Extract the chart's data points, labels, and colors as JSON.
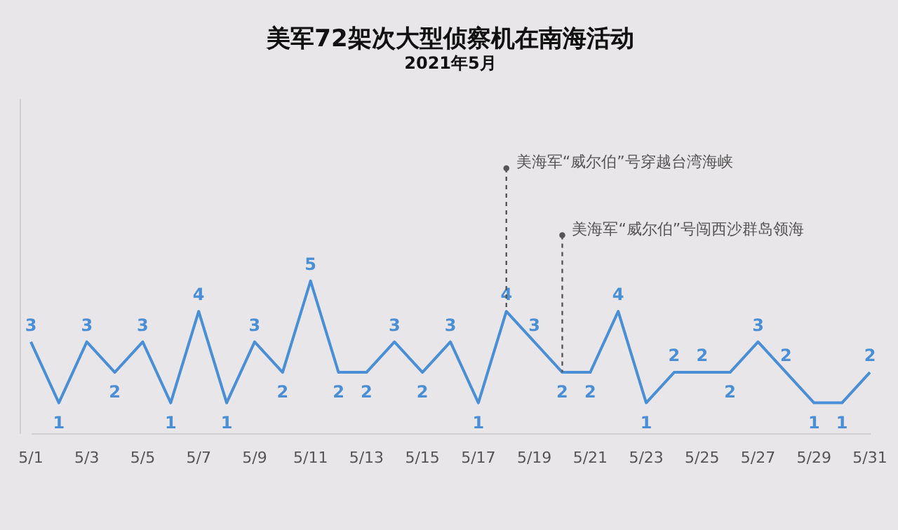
{
  "chart_data": {
    "type": "line",
    "title": "美军72架次大型侦察机在南海活动",
    "subtitle": "2021年5月",
    "x": [
      "--05-01",
      "--05-02",
      "--05-03",
      "--05-04",
      "--05-05",
      "--05-06",
      "--05-07",
      "--05-08",
      "--05-09",
      "--05-10",
      "--05-11",
      "--05-12",
      "--05-13",
      "--05-14",
      "--05-15",
      "--05-16",
      "--05-17",
      "--05-18",
      "--05-19",
      "--05-20",
      "--05-21",
      "--05-22",
      "--05-23",
      "--05-24",
      "--05-25",
      "--05-26",
      "--05-27",
      "--05-28",
      "--05-29",
      "--05-30",
      "--05-31"
    ],
    "series": [
      {
        "color": "#4a8fd6",
        "values": [
          3,
          1,
          3,
          2,
          3,
          1,
          4,
          1,
          3,
          2,
          5,
          2,
          2,
          3,
          2,
          3,
          1,
          4,
          3,
          2,
          2,
          4,
          1,
          2,
          2,
          2,
          3,
          2,
          1,
          1,
          2
        ]
      }
    ],
    "xlim": [
      "--05-01",
      "--05-31"
    ],
    "xticks": [
      {
        "value": "--05-01",
        "label": "5/1"
      },
      {
        "value": "--05-03",
        "label": "5/3"
      },
      {
        "value": "--05-05",
        "label": "5/5"
      },
      {
        "value": "--05-07",
        "label": "5/7"
      },
      {
        "value": "--05-09",
        "label": "5/9"
      },
      {
        "value": "--05-11",
        "label": "5/11"
      },
      {
        "value": "--05-13",
        "label": "5/13"
      },
      {
        "value": "--05-15",
        "label": "5/15"
      },
      {
        "value": "--05-17",
        "label": "5/17"
      },
      {
        "value": "--05-19",
        "label": "5/19"
      },
      {
        "value": "--05-21",
        "label": "5/21"
      },
      {
        "value": "--05-23",
        "label": "5/23"
      },
      {
        "value": "--05-25",
        "label": "5/25"
      },
      {
        "value": "--05-27",
        "label": "5/27"
      },
      {
        "value": "--05-29",
        "label": "5/29"
      },
      {
        "value": "--05-31",
        "label": "5/31"
      }
    ],
    "ylim": [
      0,
      11
    ],
    "tick_labels": "x",
    "data_labels": true,
    "grid": false,
    "annotations": [
      {
        "text": "美海军“威尔伯”号穿越台湾海峡",
        "x": "--05-18",
        "y": 8.7
      },
      {
        "text": "美海军“威尔伯”号闯西沙群岛领海",
        "x": "--05-20",
        "y": 6.5
      }
    ]
  }
}
